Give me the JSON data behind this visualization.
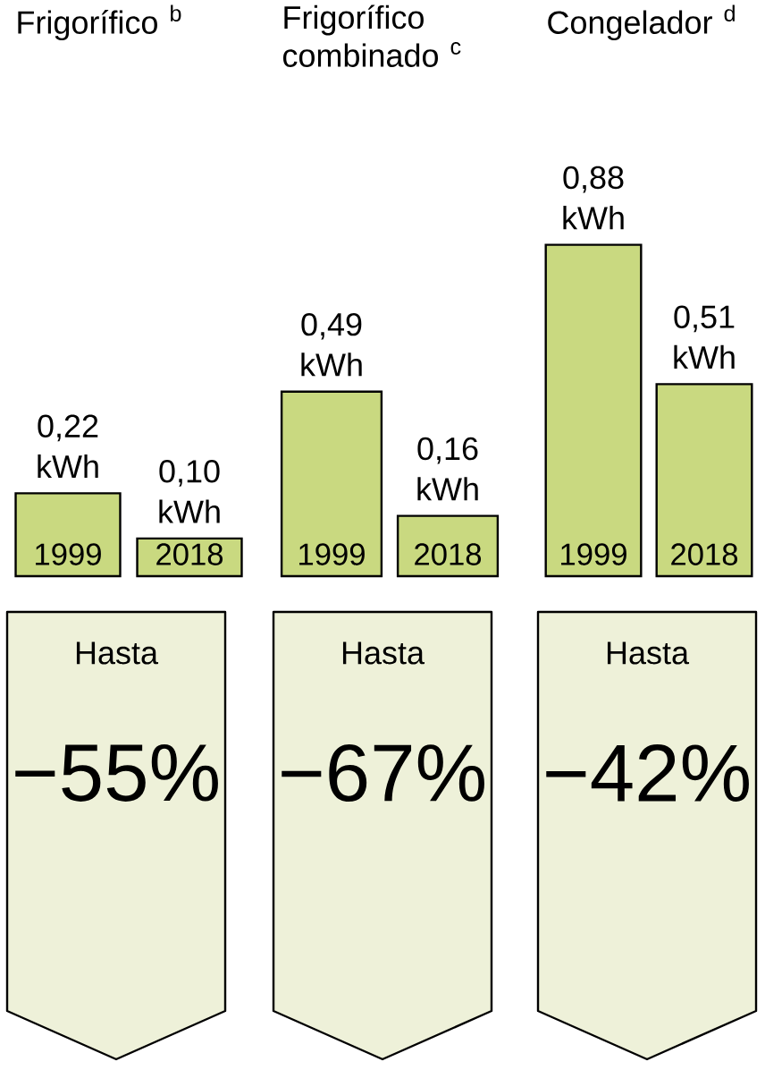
{
  "chart_data": [
    {
      "type": "bar",
      "title": "Frigorífico $^{b}$",
      "categories": [
        "1999",
        "2018"
      ],
      "values": [
        0.22,
        0.1
      ],
      "value_labels": [
        "0,22 kWh",
        "0,10 kWh"
      ],
      "color": "#c9d980",
      "annotations": [
        "Hasta",
        "−55%"
      ]
    },
    {
      "type": "bar",
      "title": "Frigorífico combinado $^{c}$",
      "categories": [
        "1999",
        "2018"
      ],
      "values": [
        0.49,
        0.16
      ],
      "value_labels": [
        "0,49 kWh",
        "0,16 kWh"
      ],
      "color": "#c9d980",
      "annotations": [
        "Hasta",
        "−67%"
      ]
    },
    {
      "type": "bar",
      "title": "Congelador $^{d}$",
      "categories": [
        "1999",
        "2018"
      ],
      "values": [
        0.88,
        0.51
      ],
      "value_labels": [
        "0,88 kWh",
        "0,51 kWh"
      ],
      "color": "#c9d980",
      "annotations": [
        "Hasta",
        "−42%"
      ]
    }
  ]
}
